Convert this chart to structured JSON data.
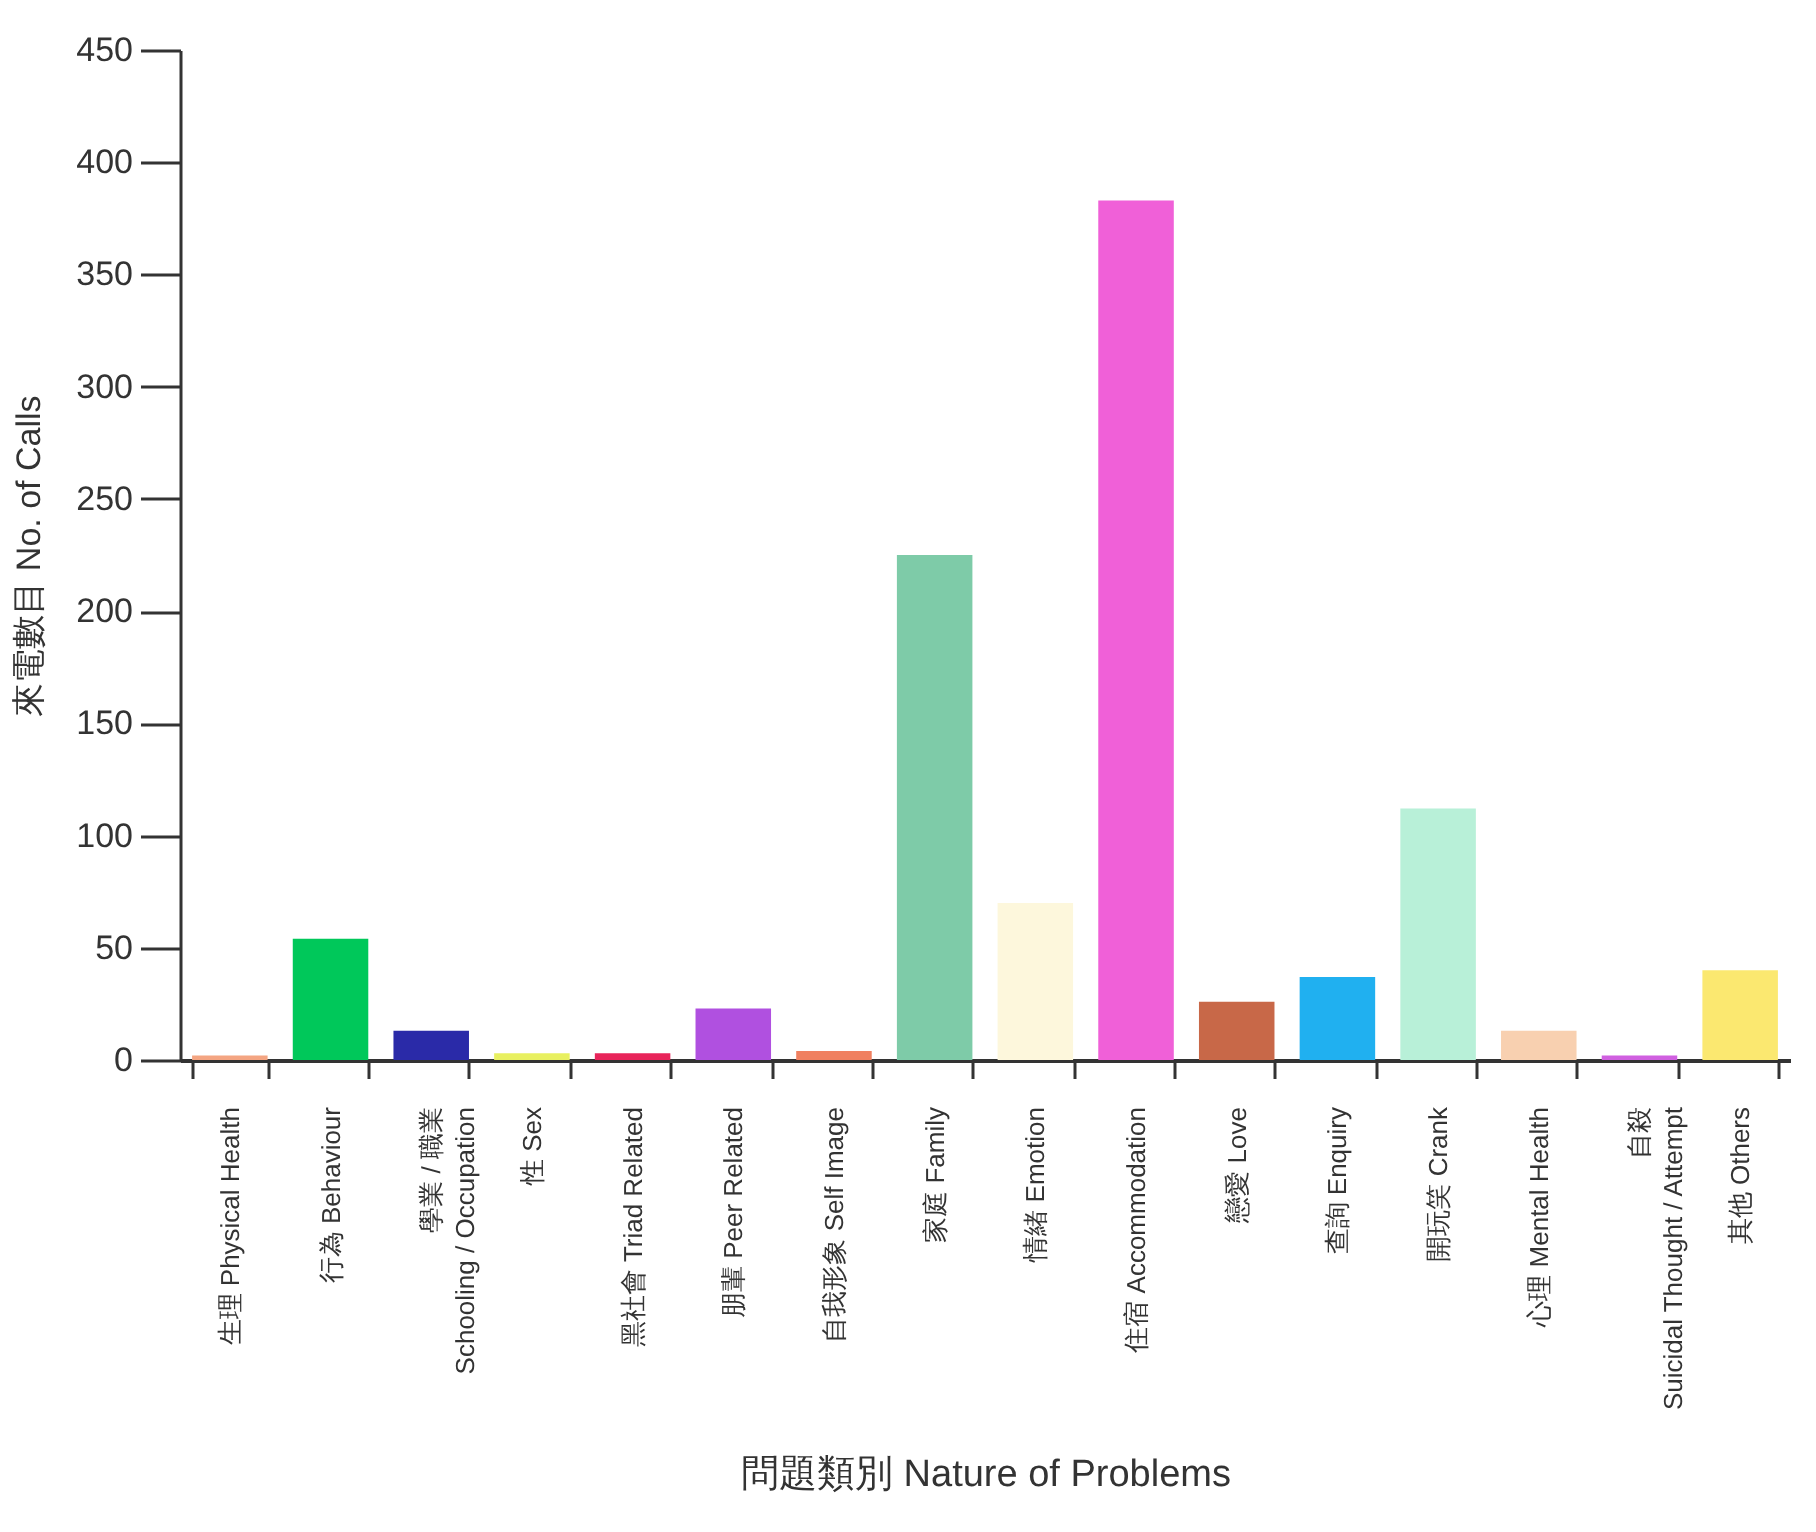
{
  "chart_data": {
    "type": "bar",
    "xlabel": "問題類別  Nature of Problems",
    "ylabel": "來電數目  No. of Calls",
    "categories": [
      "生理  Physical Health",
      "行為  Behaviour",
      "學業 / 職業\nSchooling / Occupation",
      "性  Sex",
      "黑社會  Triad Related",
      "朋輩  Peer Related",
      "自我形象  Self Image",
      "家庭  Family",
      "情緒  Emotion",
      "住宿  Accommodation",
      "戀愛  Love",
      "查詢  Enquiry",
      "開玩笑  Crank",
      "心理  Mental Health",
      "自殺\nSuicidal Thought / Attempt",
      "其他  Others"
    ],
    "values": [
      2,
      54,
      13,
      3,
      3,
      23,
      4,
      225,
      70,
      383,
      26,
      37,
      112,
      13,
      2,
      40
    ],
    "colors": [
      "#f4a582",
      "#00c85a",
      "#2a2aa8",
      "#e8f060",
      "#e8245a",
      "#b050e0",
      "#f08060",
      "#7ecba8",
      "#fdf7dc",
      "#f060d8",
      "#c86848",
      "#20b0f0",
      "#b8f0d8",
      "#f8d0b0",
      "#d060e0",
      "#fbe870"
    ],
    "ylim": [
      0,
      450
    ],
    "yticks": [
      0,
      50,
      100,
      150,
      200,
      250,
      300,
      350,
      400,
      450
    ],
    "grid": false,
    "legend": false
  }
}
